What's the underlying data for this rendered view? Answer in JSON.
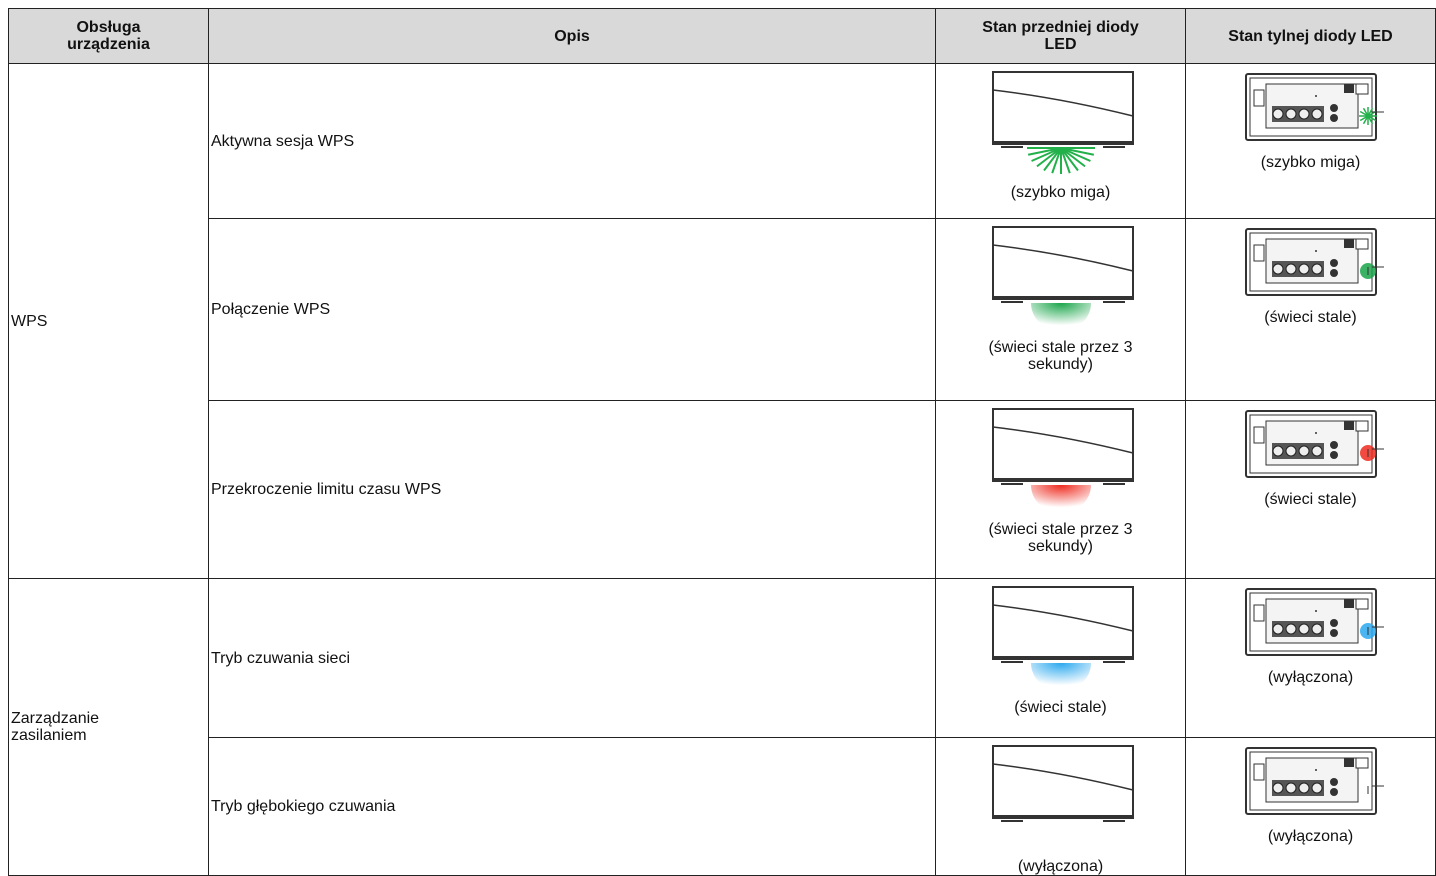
{
  "table": {
    "header": [
      "Obsługa\nurządzenia",
      "Opis",
      "Stan przedniej diody\nLED",
      "Stan tylnej diody LED"
    ],
    "groups": [
      {
        "label": "WPS",
        "items": [
          {
            "description": "Aktywna sesja WPS",
            "front": "(szybko miga)",
            "rear": "(szybko miga)",
            "led_color": "#22b04a",
            "led_blink": true
          },
          {
            "description": "Połączenie WPS",
            "front": "(świeci stale przez 3\nsekundy)",
            "rear": "(świeci stale)",
            "led_color": "#1aa54a"
          },
          {
            "description": "Przekroczenie limitu czasu WPS",
            "front": "(świeci stale przez 3\nsekundy)",
            "rear": "(świeci stale)",
            "led_color": "#ee2a1e"
          }
        ]
      },
      {
        "label": "Zarządzanie\nzasilaniem",
        "items": [
          {
            "description": "Tryb czuwania sieci",
            "front": "(świeci stale)",
            "rear": "(wyłączona)",
            "led_color": "#2aa8ee"
          },
          {
            "description": "Tryb głębokiego czuwania",
            "front": "(wyłączona)",
            "rear": "(wyłączona)"
          }
        ]
      }
    ]
  }
}
